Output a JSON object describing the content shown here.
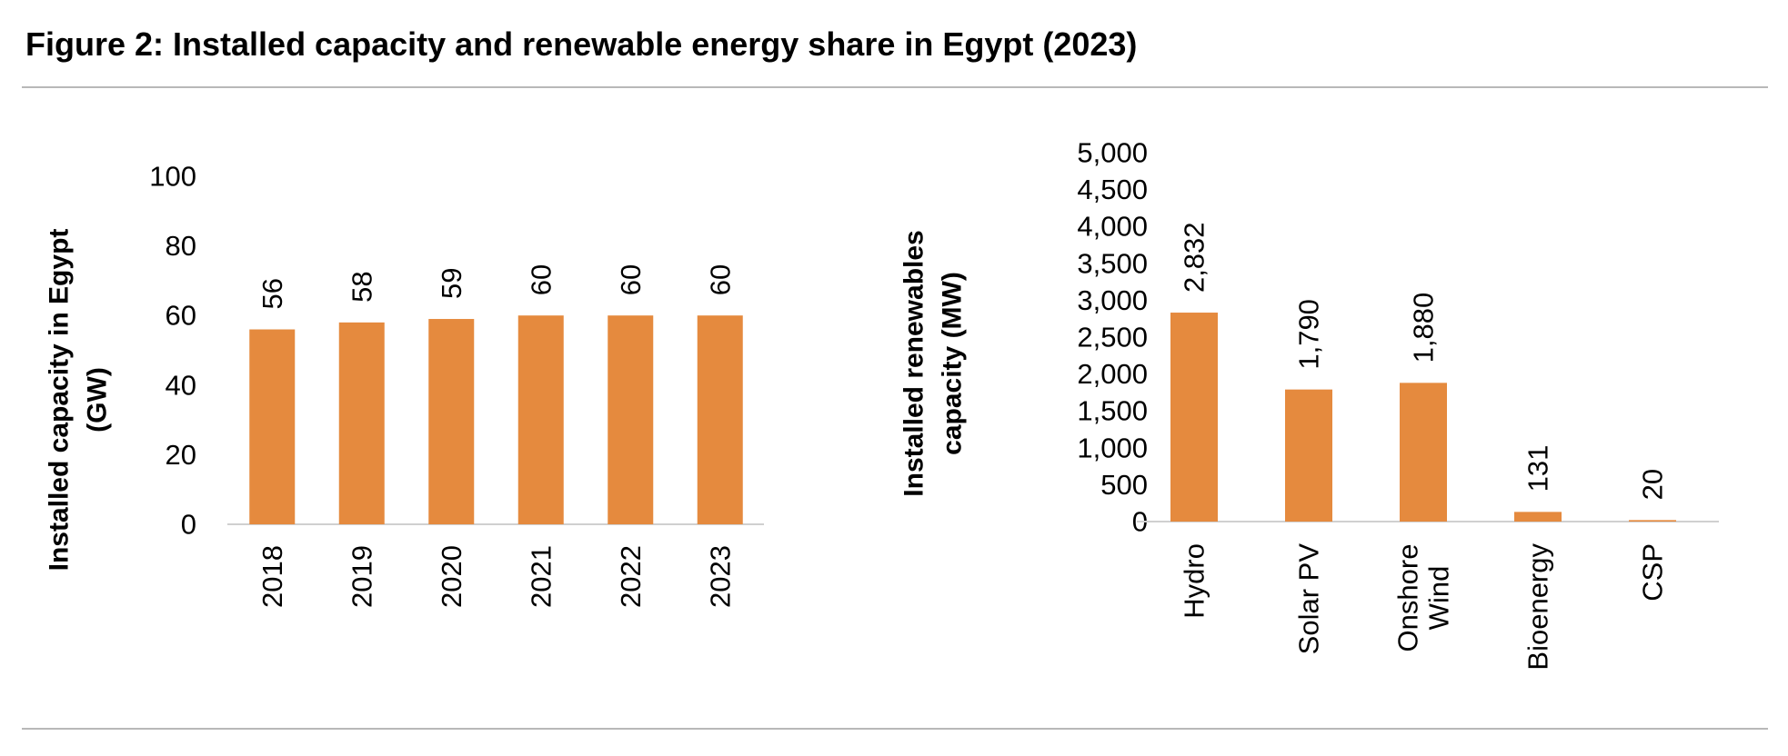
{
  "figure_title": "Figure 2: Installed capacity and renewable energy share in Egypt (2023)",
  "colors": {
    "bar": "#E58A3E",
    "axis": "#d0d0d0",
    "rule": "#b8b8b8"
  },
  "chart_data": [
    {
      "type": "bar",
      "title": "",
      "ylabel": "Installed capacity in Egypt (GW)",
      "ylabel_lines": [
        "Installed capacity in Egypt",
        "(GW)"
      ],
      "xlabel": "",
      "categories": [
        "2018",
        "2019",
        "2020",
        "2021",
        "2022",
        "2023"
      ],
      "values": [
        56,
        58,
        59,
        60,
        60,
        60
      ],
      "data_labels": [
        "56",
        "58",
        "59",
        "60",
        "60",
        "60"
      ],
      "ylim": [
        0,
        100
      ],
      "yticks": [
        0,
        20,
        40,
        60,
        80,
        100
      ],
      "ytick_labels": [
        "0",
        "20",
        "40",
        "60",
        "80",
        "100"
      ],
      "grid": false,
      "legend": "none"
    },
    {
      "type": "bar",
      "title": "",
      "ylabel": "Installed renewables capacity (MW)",
      "ylabel_lines": [
        "Installed renewables",
        "capacity (MW)"
      ],
      "xlabel": "",
      "categories": [
        "Hydro",
        "Solar PV",
        "Onshore Wind",
        "Bioenergy",
        "CSP"
      ],
      "category_lines": [
        [
          "Hydro"
        ],
        [
          "Solar PV"
        ],
        [
          "Onshore",
          "Wind"
        ],
        [
          "Bioenergy"
        ],
        [
          "CSP"
        ]
      ],
      "values": [
        2832,
        1790,
        1880,
        131,
        20
      ],
      "data_labels": [
        "2,832",
        "1,790",
        "1,880",
        "131",
        "20"
      ],
      "ylim": [
        0,
        5000
      ],
      "yticks": [
        0,
        500,
        1000,
        1500,
        2000,
        2500,
        3000,
        3500,
        4000,
        4500,
        5000
      ],
      "ytick_labels": [
        "0",
        "500",
        "1,000",
        "1,500",
        "2,000",
        "2,500",
        "3,000",
        "3,500",
        "4,000",
        "4,500",
        "5,000"
      ],
      "grid": false,
      "legend": "none"
    }
  ]
}
